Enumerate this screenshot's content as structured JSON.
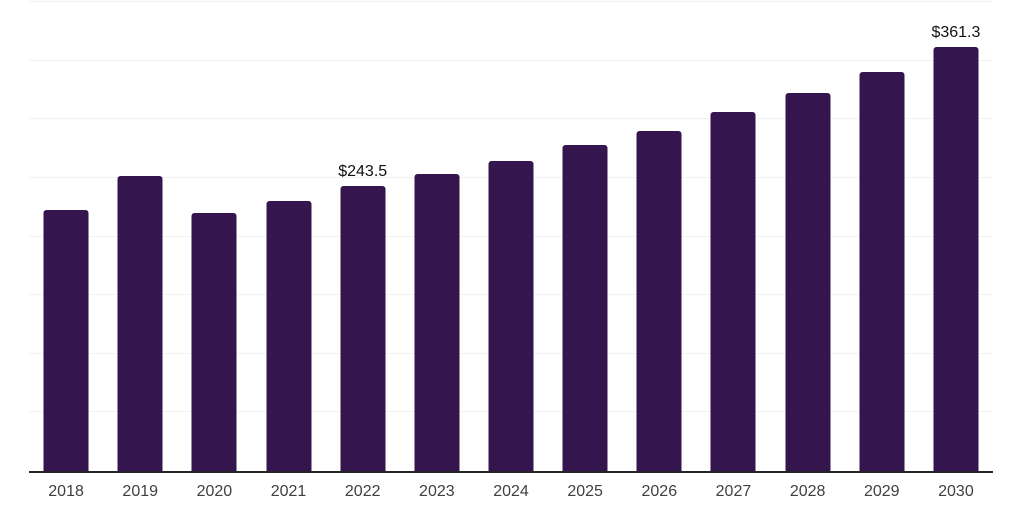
{
  "chart_data": {
    "type": "bar",
    "title": "",
    "xlabel": "",
    "ylabel": "",
    "categories": [
      "2018",
      "2019",
      "2020",
      "2021",
      "2022",
      "2023",
      "2024",
      "2025",
      "2026",
      "2027",
      "2028",
      "2029",
      "2030"
    ],
    "values": [
      222.4,
      251.5,
      219.9,
      230.7,
      243.5,
      253.4,
      264.3,
      277.8,
      290.3,
      306.0,
      322.8,
      340.5,
      361.3
    ],
    "data_labels": [
      "",
      "",
      "",
      "",
      "$243.5",
      "",
      "",
      "",
      "",
      "",
      "",
      "",
      "$361.3"
    ],
    "ylim": [
      0,
      400
    ],
    "grid_step": 50,
    "grid": "horizontal-only",
    "legend_position": "none",
    "y_tick_labels_visible": false,
    "colors": {
      "bar": "#35154e",
      "gridline": "#f2f2f2",
      "axis_line": "#262626",
      "data_label_text": "#111111",
      "tick_label_text": "#404040",
      "background": "#ffffff"
    }
  }
}
